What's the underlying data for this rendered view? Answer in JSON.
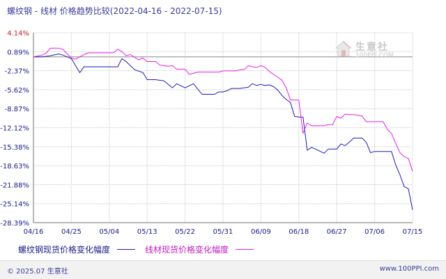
{
  "title": "螺纹钢 - 线材 价格趋势比较(2022-04-16 - 2022-07-15)",
  "watermark": {
    "brand": "生意社",
    "url": "100PPI.COM"
  },
  "legend": [
    {
      "label": "螺纹钢现货价格变化幅度",
      "color": "#1a1ab4"
    },
    {
      "label": "线材现货价格变化幅度",
      "color": "#e61ee6"
    }
  ],
  "footer": {
    "copyright": "© 2025.07 生意社",
    "site": "www.100PPI.com"
  },
  "chart_data": {
    "type": "line",
    "title": "",
    "xlabel": "",
    "ylabel": "",
    "x_ticks": [
      "04/16",
      "04/25",
      "05/04",
      "05/13",
      "05/22",
      "05/31",
      "06/09",
      "06/18",
      "06/27",
      "07/06",
      "07/15"
    ],
    "y_ticks": [
      "4.14%",
      "0.89%",
      "-2.37%",
      "-5.62%",
      "-8.87%",
      "-12.12%",
      "-15.38%",
      "-18.63%",
      "-21.88%",
      "-25.14%",
      "-28.39%"
    ],
    "y_tick_values": [
      4.14,
      0.89,
      -2.37,
      -5.62,
      -8.87,
      -12.12,
      -15.38,
      -18.63,
      -21.88,
      -25.14,
      -28.39
    ],
    "ylim": [
      -28.39,
      4.14
    ],
    "x_start": "2022-04-16",
    "x_end": "2022-07-15",
    "grid": true,
    "series": [
      {
        "name": "螺纹钢现货价格变化幅度",
        "color": "#1a1ab4",
        "points": [
          [
            "2022-04-16",
            0
          ],
          [
            "2022-04-18",
            0
          ],
          [
            "2022-04-20",
            0.2
          ],
          [
            "2022-04-22",
            0.5
          ],
          [
            "2022-04-23",
            0.3
          ],
          [
            "2022-04-25",
            -0.3
          ],
          [
            "2022-04-26",
            -1.5
          ],
          [
            "2022-04-27",
            -2.7
          ],
          [
            "2022-04-28",
            -1.7
          ],
          [
            "2022-04-30",
            -1.7
          ],
          [
            "2022-05-02",
            -1.7
          ],
          [
            "2022-05-06",
            -1.7
          ],
          [
            "2022-05-07",
            -0.3
          ],
          [
            "2022-05-08",
            -0.8
          ],
          [
            "2022-05-10",
            -2.2
          ],
          [
            "2022-05-12",
            -2.7
          ],
          [
            "2022-05-13",
            -3.9
          ],
          [
            "2022-05-15",
            -3.9
          ],
          [
            "2022-05-17",
            -4.1
          ],
          [
            "2022-05-19",
            -5.3
          ],
          [
            "2022-05-20",
            -4.6
          ],
          [
            "2022-05-22",
            -5.3
          ],
          [
            "2022-05-24",
            -4.6
          ],
          [
            "2022-05-26",
            -6.4
          ],
          [
            "2022-05-29",
            -6.4
          ],
          [
            "2022-05-30",
            -6.0
          ],
          [
            "2022-05-31",
            -6.0
          ],
          [
            "2022-06-01",
            -5.8
          ],
          [
            "2022-06-02",
            -5.4
          ],
          [
            "2022-06-04",
            -5.4
          ],
          [
            "2022-06-05",
            -5.3
          ],
          [
            "2022-06-06",
            -5.2
          ],
          [
            "2022-06-07",
            -4.6
          ],
          [
            "2022-06-08",
            -4.9
          ],
          [
            "2022-06-09",
            -4.7
          ],
          [
            "2022-06-10",
            -4.9
          ],
          [
            "2022-06-11",
            -4.8
          ],
          [
            "2022-06-12",
            -5.1
          ],
          [
            "2022-06-13",
            -5.7
          ],
          [
            "2022-06-14",
            -6.6
          ],
          [
            "2022-06-15",
            -7.3
          ],
          [
            "2022-06-16",
            -7.8
          ],
          [
            "2022-06-17",
            -10.2
          ],
          [
            "2022-06-18",
            -10.3
          ],
          [
            "2022-06-19",
            -10.3
          ],
          [
            "2022-06-20",
            -16.0
          ],
          [
            "2022-06-21",
            -15.5
          ],
          [
            "2022-06-22",
            -15.8
          ],
          [
            "2022-06-24",
            -16.5
          ],
          [
            "2022-06-25",
            -15.8
          ],
          [
            "2022-06-27",
            -15.8
          ],
          [
            "2022-06-28",
            -14.9
          ],
          [
            "2022-06-29",
            -15.2
          ],
          [
            "2022-06-30",
            -14.6
          ],
          [
            "2022-07-01",
            -13.9
          ],
          [
            "2022-07-03",
            -13.9
          ],
          [
            "2022-07-04",
            -14.6
          ],
          [
            "2022-07-05",
            -16.4
          ],
          [
            "2022-07-06",
            -16.2
          ],
          [
            "2022-07-07",
            -16.2
          ],
          [
            "2022-07-09",
            -16.2
          ],
          [
            "2022-07-10",
            -16.2
          ],
          [
            "2022-07-11",
            -18.5
          ],
          [
            "2022-07-12",
            -20.2
          ],
          [
            "2022-07-13",
            -22.2
          ],
          [
            "2022-07-14",
            -22.6
          ],
          [
            "2022-07-15",
            -26.2
          ]
        ]
      },
      {
        "name": "线材现货价格变化幅度",
        "color": "#e61ee6",
        "points": [
          [
            "2022-04-16",
            0
          ],
          [
            "2022-04-18",
            0.3
          ],
          [
            "2022-04-19",
            0.6
          ],
          [
            "2022-04-20",
            1.5
          ],
          [
            "2022-04-22",
            1.5
          ],
          [
            "2022-04-23",
            1.3
          ],
          [
            "2022-04-24",
            0.5
          ],
          [
            "2022-04-25",
            -0.2
          ],
          [
            "2022-04-26",
            -0.4
          ],
          [
            "2022-04-27",
            0
          ],
          [
            "2022-04-28",
            0.4
          ],
          [
            "2022-04-29",
            0.7
          ],
          [
            "2022-05-01",
            0.7
          ],
          [
            "2022-05-05",
            0.7
          ],
          [
            "2022-05-06",
            1.3
          ],
          [
            "2022-05-07",
            0.9
          ],
          [
            "2022-05-08",
            0.2
          ],
          [
            "2022-05-09",
            0.4
          ],
          [
            "2022-05-11",
            -0.5
          ],
          [
            "2022-05-12",
            -0.2
          ],
          [
            "2022-05-13",
            -0.8
          ],
          [
            "2022-05-15",
            -0.8
          ],
          [
            "2022-05-16",
            -1.4
          ],
          [
            "2022-05-18",
            -1.6
          ],
          [
            "2022-05-19",
            -1.5
          ],
          [
            "2022-05-20",
            -2.1
          ],
          [
            "2022-05-22",
            -2.1
          ],
          [
            "2022-05-23",
            -3.0
          ],
          [
            "2022-05-25",
            -2.6
          ],
          [
            "2022-05-30",
            -2.6
          ],
          [
            "2022-05-31",
            -2.4
          ],
          [
            "2022-06-03",
            -2.4
          ],
          [
            "2022-06-04",
            -2.2
          ],
          [
            "2022-06-05",
            -2.2
          ],
          [
            "2022-06-06",
            -1.5
          ],
          [
            "2022-06-07",
            -1.7
          ],
          [
            "2022-06-08",
            -1.8
          ],
          [
            "2022-06-09",
            -1.5
          ],
          [
            "2022-06-10",
            -1.8
          ],
          [
            "2022-06-11",
            -2.5
          ],
          [
            "2022-06-12",
            -3.0
          ],
          [
            "2022-06-13",
            -3.5
          ],
          [
            "2022-06-14",
            -4.0
          ],
          [
            "2022-06-15",
            -5.3
          ],
          [
            "2022-06-16",
            -7.4
          ],
          [
            "2022-06-18",
            -7.4
          ],
          [
            "2022-06-19",
            -13.1
          ],
          [
            "2022-06-20",
            -11.3
          ],
          [
            "2022-06-21",
            -11.8
          ],
          [
            "2022-06-22",
            -11.8
          ],
          [
            "2022-06-24",
            -11.8
          ],
          [
            "2022-06-25",
            -11.6
          ],
          [
            "2022-06-26",
            -11.6
          ],
          [
            "2022-06-27",
            -10.2
          ],
          [
            "2022-06-28",
            -10.5
          ],
          [
            "2022-06-29",
            -9.8
          ],
          [
            "2022-06-30",
            -9.9
          ],
          [
            "2022-07-01",
            -9.9
          ],
          [
            "2022-07-03",
            -10.1
          ],
          [
            "2022-07-04",
            -11.1
          ],
          [
            "2022-07-05",
            -11.1
          ],
          [
            "2022-07-08",
            -11.1
          ],
          [
            "2022-07-09",
            -12.4
          ],
          [
            "2022-07-10",
            -13.1
          ],
          [
            "2022-07-11",
            -14.8
          ],
          [
            "2022-07-12",
            -16.4
          ],
          [
            "2022-07-13",
            -17.1
          ],
          [
            "2022-07-14",
            -17.4
          ],
          [
            "2022-07-15",
            -19.6
          ]
        ]
      }
    ]
  }
}
